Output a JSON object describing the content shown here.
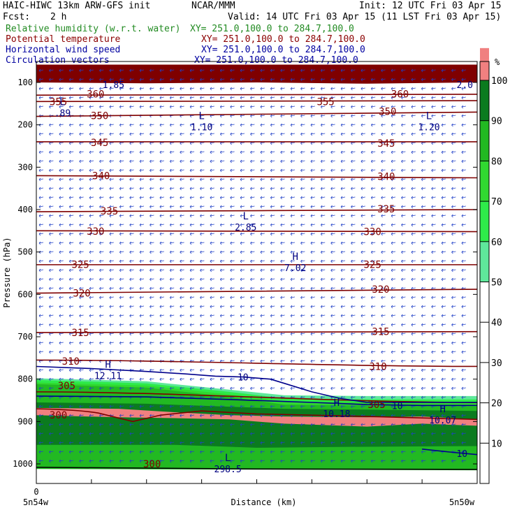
{
  "header": {
    "model": "HAIC-HIWC 13km ARW-GFS init",
    "org": "NCAR/MMM",
    "init": "Init: 12 UTC Fri 03 Apr 15",
    "fcst_label": "Fcst:",
    "fcst_value": "2 h",
    "valid": "Valid: 14 UTC Fri 03 Apr 15 (11 LST Fri 03 Apr 15)"
  },
  "fields": [
    {
      "name": "Relative humidity (w.r.t. water)",
      "xy": "XY= 251.0,100.0 to 284.7,100.0",
      "color": "#228B22"
    },
    {
      "name": "Potential temperature",
      "xy": "XY= 251.0,100.0 to 284.7,100.0",
      "color": "#8B0000"
    },
    {
      "name": "Horizontal wind speed",
      "xy": "XY= 251.0,100.0 to 284.7,100.0",
      "color": "#0000A0"
    },
    {
      "name": "Circulation vectors",
      "xy": "XY= 251.0,100.0 to 284.7,100.0",
      "color": "#0000A0"
    }
  ],
  "chart_data": {
    "type": "cross-section",
    "xlabel": "Distance (km)",
    "ylabel": "Pressure (hPa)",
    "x_start_tick": "0",
    "x_left_label": "5n54w",
    "x_right_label": "5n50w",
    "xlim": [
      0,
      32
    ],
    "ylim_hpa": [
      1050,
      55
    ],
    "y_ticks": [
      100,
      200,
      300,
      400,
      500,
      600,
      700,
      800,
      900,
      1000
    ],
    "colorbar": {
      "unit": "%",
      "ticks": [
        10,
        20,
        30,
        40,
        50,
        60,
        70,
        80,
        90,
        100
      ],
      "levels": [
        {
          "from": 50,
          "to": 60,
          "color": "#5FE89B"
        },
        {
          "from": 60,
          "to": 70,
          "color": "#2EEB4A"
        },
        {
          "from": 70,
          "to": 80,
          "color": "#31D931"
        },
        {
          "from": 80,
          "to": 90,
          "color": "#22B922"
        },
        {
          "from": 90,
          "to": 100,
          "color": "#0B7B1F"
        },
        {
          "from": 100,
          "to": 105,
          "color": "#F08080"
        },
        {
          "from": 105,
          "to": 110,
          "color": "#7F0000"
        }
      ]
    },
    "theta_isentropes": [
      {
        "label": "360",
        "p": 130,
        "pr": 128
      },
      {
        "label": "355",
        "p": 145,
        "pr": 143
      },
      {
        "label": "350",
        "p": 180,
        "pr": 170
      },
      {
        "label": "345",
        "p": 240,
        "pr": 240
      },
      {
        "label": "340",
        "p": 320,
        "pr": 325
      },
      {
        "label": "335",
        "p": 405,
        "pr": 400
      },
      {
        "label": "330",
        "p": 450,
        "pr": 452
      },
      {
        "label": "325",
        "p": 530,
        "pr": 530
      },
      {
        "label": "320",
        "p": 597,
        "pr": 588
      },
      {
        "label": "315",
        "p": 690,
        "pr": 688
      },
      {
        "label": "310",
        "p": 755,
        "pr": 770
      },
      {
        "label": "305",
        "p": 830,
        "pr": 855
      },
      {
        "label": "300",
        "p": 870,
        "pr": 895
      }
    ],
    "theta_labels": [
      {
        "text": "360",
        "x": 4.3,
        "p": 127
      },
      {
        "text": "360",
        "x": 26.4,
        "p": 127
      },
      {
        "text": "355",
        "x": 1.6,
        "p": 145
      },
      {
        "text": "355",
        "x": 21.0,
        "p": 145
      },
      {
        "text": "350",
        "x": 4.6,
        "p": 178
      },
      {
        "text": "350",
        "x": 25.5,
        "p": 168
      },
      {
        "text": "345",
        "x": 4.6,
        "p": 242
      },
      {
        "text": "345",
        "x": 25.4,
        "p": 243
      },
      {
        "text": "340",
        "x": 4.7,
        "p": 320
      },
      {
        "text": "340",
        "x": 25.4,
        "p": 322
      },
      {
        "text": "335",
        "x": 5.3,
        "p": 403
      },
      {
        "text": "335",
        "x": 25.4,
        "p": 398
      },
      {
        "text": "330",
        "x": 4.3,
        "p": 451
      },
      {
        "text": "330",
        "x": 24.4,
        "p": 452
      },
      {
        "text": "325",
        "x": 3.2,
        "p": 529
      },
      {
        "text": "325",
        "x": 24.4,
        "p": 529
      },
      {
        "text": "320",
        "x": 3.3,
        "p": 597
      },
      {
        "text": "320",
        "x": 25.0,
        "p": 588
      },
      {
        "text": "315",
        "x": 3.2,
        "p": 690
      },
      {
        "text": "315",
        "x": 25.0,
        "p": 688
      },
      {
        "text": "310",
        "x": 2.5,
        "p": 758
      },
      {
        "text": "310",
        "x": 24.8,
        "p": 770
      },
      {
        "text": "305",
        "x": 2.2,
        "p": 815
      },
      {
        "text": "305",
        "x": 24.7,
        "p": 860
      },
      {
        "text": "300",
        "x": 1.6,
        "p": 885
      },
      {
        "text": "300",
        "x": 8.4,
        "p": 1000
      }
    ],
    "wind_labels": [
      {
        "text": "10",
        "x": 15.0,
        "p": 795
      },
      {
        "text": "10",
        "x": 26.2,
        "p": 862
      },
      {
        "text": "10",
        "x": 30.9,
        "p": 975
      },
      {
        "text": "1.85",
        "x": 5.6,
        "p": 105
      },
      {
        "text": "2.0",
        "x": 31.1,
        "p": 105
      }
    ],
    "extrema": [
      {
        "kind": "L",
        "value": ".89",
        "x": 1.9,
        "p": 160
      },
      {
        "kind": "L",
        "value": "1.10",
        "x": 12.0,
        "p": 193
      },
      {
        "kind": "L",
        "value": "1.20",
        "x": 28.5,
        "p": 193
      },
      {
        "kind": "L",
        "value": "2.85",
        "x": 15.2,
        "p": 430
      },
      {
        "kind": "H",
        "value": "7.02",
        "x": 18.8,
        "p": 525
      },
      {
        "kind": "H",
        "value": "12.11",
        "x": 5.2,
        "p": 780
      },
      {
        "kind": "H",
        "value": "10.18",
        "x": 21.8,
        "p": 870
      },
      {
        "kind": "H",
        "value": "10.07",
        "x": 29.5,
        "p": 885
      },
      {
        "kind": "L",
        "value": "298.5",
        "x": 13.9,
        "p": 1000
      }
    ],
    "rh_layers": [
      {
        "level": 50,
        "top": [
          [
            0,
            798
          ],
          [
            8,
            805
          ],
          [
            14,
            825
          ],
          [
            18,
            838
          ],
          [
            24,
            840
          ],
          [
            32,
            840
          ]
        ],
        "bottom": [
          [
            0,
            1040
          ],
          [
            32,
            1040
          ]
        ]
      },
      {
        "level": 60,
        "top": [
          [
            0,
            802
          ],
          [
            8,
            810
          ],
          [
            14,
            830
          ],
          [
            18,
            845
          ],
          [
            24,
            848
          ],
          [
            32,
            848
          ]
        ],
        "bottom": [
          [
            0,
            1040
          ],
          [
            32,
            1040
          ]
        ]
      },
      {
        "level": 70,
        "top": [
          [
            0,
            808
          ],
          [
            8,
            815
          ],
          [
            14,
            836
          ],
          [
            18,
            852
          ],
          [
            24,
            855
          ],
          [
            32,
            856
          ]
        ],
        "bottom": [
          [
            0,
            1040
          ],
          [
            32,
            1040
          ]
        ]
      },
      {
        "level": 80,
        "top": [
          [
            0,
            812
          ],
          [
            8,
            820
          ],
          [
            14,
            842
          ],
          [
            18,
            860
          ],
          [
            24,
            862
          ],
          [
            32,
            864
          ]
        ],
        "bottom": [
          [
            0,
            1040
          ],
          [
            32,
            1040
          ]
        ]
      },
      {
        "level": 90,
        "top": [
          [
            0,
            855
          ],
          [
            8,
            858
          ],
          [
            14,
            865
          ],
          [
            18,
            870
          ],
          [
            24,
            872
          ],
          [
            32,
            875
          ]
        ],
        "bottom": [
          [
            0,
            955
          ],
          [
            10,
            955
          ],
          [
            16,
            962
          ],
          [
            22,
            960
          ],
          [
            32,
            958
          ]
        ]
      },
      {
        "level": 100,
        "top": [
          [
            0,
            868
          ],
          [
            6,
            870
          ],
          [
            10,
            878
          ],
          [
            14,
            885
          ],
          [
            18,
            888
          ],
          [
            24,
            890
          ],
          [
            28,
            888
          ],
          [
            32,
            895
          ]
        ],
        "bottom": [
          [
            0,
            885
          ],
          [
            6,
            890
          ],
          [
            10,
            892
          ],
          [
            14,
            895
          ],
          [
            18,
            905
          ],
          [
            24,
            912
          ],
          [
            28,
            905
          ],
          [
            32,
            910
          ]
        ]
      },
      {
        "level": 110,
        "top": [
          [
            0,
            58
          ],
          [
            32,
            58
          ]
        ],
        "bottom": [
          [
            0,
            100
          ],
          [
            8,
            102
          ],
          [
            16,
            100
          ],
          [
            24,
            103
          ],
          [
            32,
            100
          ]
        ]
      }
    ],
    "wind_isotachs": [
      {
        "value": 10,
        "points": [
          [
            0,
            770
          ],
          [
            4,
            775
          ],
          [
            8,
            782
          ],
          [
            11,
            788
          ],
          [
            13,
            793
          ],
          [
            15,
            795
          ],
          [
            17,
            800
          ],
          [
            18,
            810
          ],
          [
            20,
            830
          ],
          [
            22,
            845
          ],
          [
            24,
            855
          ],
          [
            28,
            855
          ],
          [
            32,
            855
          ]
        ]
      },
      {
        "value": 10,
        "points": [
          [
            0,
            840
          ],
          [
            8,
            842
          ],
          [
            14,
            848
          ],
          [
            20,
            855
          ],
          [
            24,
            860
          ],
          [
            28,
            862
          ],
          [
            32,
            862
          ]
        ]
      },
      {
        "value": 10,
        "points": [
          [
            28,
            965
          ],
          [
            30,
            972
          ],
          [
            32,
            978
          ]
        ]
      }
    ]
  }
}
